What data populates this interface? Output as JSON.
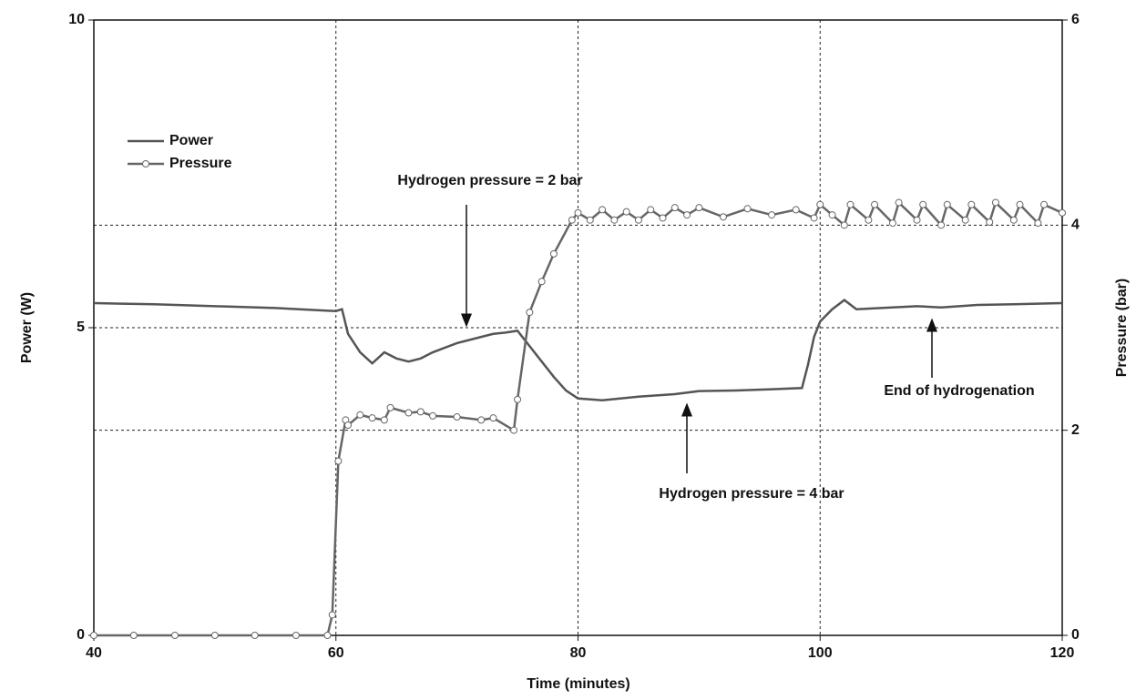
{
  "chart_data": {
    "type": "line",
    "xlabel": "Time (minutes)",
    "ylabel": "Power (W)",
    "y2label": "Pressure (bar)",
    "xlim": [
      40,
      120
    ],
    "xticks": [
      40,
      60,
      80,
      100,
      120
    ],
    "ylim": [
      0,
      10
    ],
    "yticks": [
      0,
      5,
      10
    ],
    "y2lim": [
      0,
      6
    ],
    "y2ticks": [
      0,
      2,
      4,
      6
    ],
    "grid": true,
    "legend": "upper left",
    "annotations": [
      "Hydrogen pressure = 2 bar",
      "Hydrogen pressure = 4 bar",
      "End of hydrogenation"
    ],
    "series": [
      {
        "name": "Power",
        "color": "#555555",
        "x": [
          40,
          45,
          50,
          55,
          59,
          60,
          60.5,
          61,
          62,
          63,
          64,
          65,
          66,
          67,
          68,
          70,
          72,
          73,
          74,
          75,
          76,
          77,
          78,
          79,
          80,
          82,
          85,
          88,
          90,
          93,
          96,
          98.5,
          99,
          99.5,
          100,
          101,
          102,
          103,
          105,
          108,
          110,
          113,
          116,
          120
        ],
        "values": [
          5.4,
          5.38,
          5.35,
          5.32,
          5.28,
          5.27,
          5.3,
          4.9,
          4.6,
          4.42,
          4.6,
          4.5,
          4.45,
          4.5,
          4.6,
          4.75,
          4.85,
          4.9,
          4.92,
          4.95,
          4.7,
          4.45,
          4.2,
          3.98,
          3.85,
          3.82,
          3.88,
          3.92,
          3.97,
          3.98,
          4.0,
          4.02,
          4.4,
          4.85,
          5.1,
          5.3,
          5.45,
          5.3,
          5.32,
          5.35,
          5.33,
          5.37,
          5.38,
          5.4
        ]
      },
      {
        "name": "Pressure",
        "color": "#666666",
        "axis": "y2",
        "marker": "circle",
        "x": [
          40,
          43.3,
          46.7,
          50,
          53.3,
          56.7,
          59.3,
          59.7,
          60.2,
          60.8,
          61,
          62,
          63,
          64,
          64.5,
          66,
          67,
          68,
          70,
          72,
          73,
          74.7,
          75,
          76,
          77,
          78,
          79.5,
          80,
          81,
          82,
          83,
          84,
          85,
          86,
          87,
          88,
          89,
          90,
          92,
          94,
          96,
          98,
          99.5,
          100,
          101,
          102,
          102.5,
          104,
          104.5,
          106,
          106.5,
          108,
          108.5,
          110,
          110.5,
          112,
          112.5,
          114,
          114.5,
          116,
          116.5,
          118,
          118.5,
          120
        ],
        "values": [
          0,
          0,
          0,
          0,
          0,
          0,
          0,
          0.2,
          1.7,
          2.1,
          2.05,
          2.15,
          2.12,
          2.1,
          2.22,
          2.17,
          2.18,
          2.14,
          2.13,
          2.1,
          2.12,
          2.0,
          2.3,
          3.15,
          3.45,
          3.72,
          4.05,
          4.12,
          4.05,
          4.15,
          4.05,
          4.13,
          4.05,
          4.15,
          4.07,
          4.17,
          4.1,
          4.17,
          4.08,
          4.16,
          4.1,
          4.15,
          4.07,
          4.2,
          4.1,
          4.0,
          4.2,
          4.05,
          4.2,
          4.02,
          4.22,
          4.05,
          4.2,
          4.0,
          4.2,
          4.05,
          4.2,
          4.03,
          4.22,
          4.05,
          4.2,
          4.02,
          4.2,
          4.12
        ]
      }
    ]
  }
}
